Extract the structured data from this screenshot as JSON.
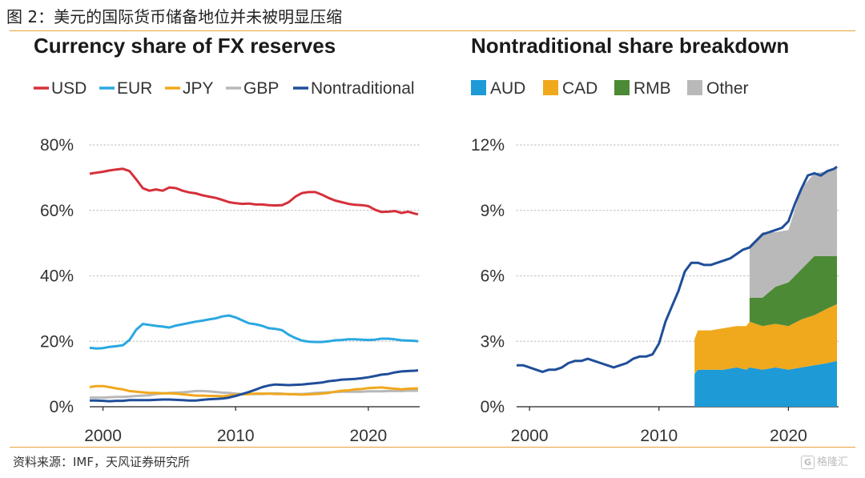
{
  "figure_title": "图 2：美元的国际货币储备地位并未被明显压缩",
  "source": "资料来源：IMF，天风证券研究所",
  "watermark": {
    "icon_text": "G",
    "text": "格隆汇"
  },
  "colors": {
    "USD": "#d6303a",
    "EUR": "#2aa8e0",
    "JPY": "#f0a81c",
    "GBP": "#b8b8b8",
    "Nontraditional": "#1f4e99",
    "AUD": "#1e9ad6",
    "CAD": "#f0a81c",
    "RMB": "#4c8a35",
    "Other": "#b9b9b9",
    "accent_rule": "#e8a23a"
  },
  "chart_data": [
    {
      "type": "line",
      "title": "Currency share of FX reserves",
      "xlabel": "",
      "ylabel": "",
      "xlim": [
        1999,
        2023.75
      ],
      "ylim": [
        0,
        80
      ],
      "yticks": [
        "0%",
        "20%",
        "40%",
        "60%",
        "80%"
      ],
      "xticks": [
        "2000",
        "2010",
        "2020"
      ],
      "grid": true,
      "legend": "top",
      "x": [
        1999,
        1999.5,
        2000,
        2000.5,
        2001,
        2001.5,
        2002,
        2002.5,
        2003,
        2003.5,
        2004,
        2004.5,
        2005,
        2005.5,
        2006,
        2006.5,
        2007,
        2007.5,
        2008,
        2008.5,
        2009,
        2009.5,
        2010,
        2010.5,
        2011,
        2011.5,
        2012,
        2012.5,
        2013,
        2013.5,
        2014,
        2014.5,
        2015,
        2015.5,
        2016,
        2016.5,
        2017,
        2017.5,
        2018,
        2018.5,
        2019,
        2019.5,
        2020,
        2020.5,
        2021,
        2021.5,
        2022,
        2022.5,
        2023,
        2023.5,
        2023.75
      ],
      "series": [
        {
          "name": "USD",
          "values": [
            71.2,
            71.5,
            71.8,
            72.2,
            72.5,
            72.7,
            72.0,
            69.5,
            66.8,
            66.0,
            66.4,
            66.0,
            67.0,
            66.8,
            66.0,
            65.5,
            65.2,
            64.6,
            64.2,
            63.8,
            63.2,
            62.5,
            62.2,
            62.0,
            62.1,
            61.8,
            61.8,
            61.6,
            61.5,
            61.6,
            62.5,
            64.2,
            65.3,
            65.6,
            65.6,
            64.8,
            63.8,
            63.0,
            62.5,
            62.0,
            61.7,
            61.6,
            61.3,
            60.2,
            59.5,
            59.6,
            59.8,
            59.2,
            59.6,
            59.0,
            58.8
          ]
        },
        {
          "name": "EUR",
          "values": [
            18.0,
            17.8,
            17.9,
            18.3,
            18.5,
            18.8,
            20.4,
            23.5,
            25.3,
            25.0,
            24.7,
            24.5,
            24.2,
            24.8,
            25.2,
            25.6,
            26.0,
            26.3,
            26.7,
            27.0,
            27.6,
            27.9,
            27.3,
            26.4,
            25.5,
            25.2,
            24.7,
            24.0,
            23.8,
            23.4,
            22.0,
            21.0,
            20.2,
            19.9,
            19.8,
            19.8,
            20.0,
            20.3,
            20.4,
            20.6,
            20.6,
            20.5,
            20.4,
            20.5,
            20.8,
            20.8,
            20.6,
            20.3,
            20.2,
            20.1,
            20.0
          ]
        },
        {
          "name": "JPY",
          "values": [
            6.0,
            6.3,
            6.3,
            6.0,
            5.6,
            5.3,
            4.8,
            4.6,
            4.4,
            4.2,
            4.2,
            4.1,
            4.1,
            4.0,
            3.8,
            3.6,
            3.4,
            3.4,
            3.3,
            3.3,
            3.2,
            3.4,
            3.7,
            3.8,
            3.9,
            4.0,
            4.0,
            4.0,
            3.9,
            3.9,
            3.9,
            3.8,
            3.7,
            3.8,
            3.9,
            4.0,
            4.2,
            4.6,
            4.9,
            5.0,
            5.3,
            5.4,
            5.7,
            5.8,
            5.9,
            5.7,
            5.5,
            5.3,
            5.5,
            5.6,
            5.6
          ]
        },
        {
          "name": "GBP",
          "values": [
            2.8,
            2.8,
            2.8,
            2.9,
            3.0,
            3.0,
            3.1,
            3.3,
            3.4,
            3.5,
            3.9,
            4.1,
            4.2,
            4.3,
            4.4,
            4.6,
            4.8,
            4.8,
            4.7,
            4.5,
            4.3,
            4.2,
            4.0,
            3.9,
            3.9,
            3.9,
            3.9,
            4.0,
            4.1,
            4.0,
            3.8,
            3.9,
            3.9,
            4.0,
            4.2,
            4.3,
            4.4,
            4.5,
            4.6,
            4.6,
            4.6,
            4.6,
            4.7,
            4.7,
            4.7,
            4.8,
            4.8,
            4.8,
            4.9,
            4.9,
            4.9
          ]
        },
        {
          "name": "Nontraditional",
          "values": [
            1.9,
            1.9,
            1.8,
            1.7,
            1.8,
            1.8,
            2.0,
            2.0,
            2.0,
            2.0,
            2.1,
            2.2,
            2.2,
            2.1,
            2.0,
            1.9,
            1.9,
            2.1,
            2.3,
            2.4,
            2.5,
            2.8,
            3.3,
            3.9,
            4.5,
            5.2,
            6.0,
            6.5,
            6.8,
            6.7,
            6.6,
            6.7,
            6.8,
            7.0,
            7.2,
            7.4,
            7.8,
            8.0,
            8.3,
            8.4,
            8.5,
            8.7,
            9.0,
            9.4,
            9.8,
            10.0,
            10.5,
            10.8,
            10.9,
            11.0,
            11.1
          ]
        }
      ]
    },
    {
      "type": "area",
      "title": "Nontraditional share breakdown",
      "xlabel": "",
      "ylabel": "",
      "xlim": [
        1999,
        2023.75
      ],
      "ylim": [
        0,
        12
      ],
      "yticks": [
        "0%",
        "3%",
        "6%",
        "9%",
        "12%"
      ],
      "xticks": [
        "2000",
        "2010",
        "2020"
      ],
      "grid": true,
      "legend": "top",
      "line_series": {
        "name": "Nontraditional",
        "x": [
          1999,
          1999.5,
          2000,
          2000.5,
          2001,
          2001.5,
          2002,
          2002.5,
          2003,
          2003.5,
          2004,
          2004.5,
          2005,
          2005.5,
          2006,
          2006.5,
          2007,
          2007.5,
          2008,
          2008.5,
          2009,
          2009.5,
          2010,
          2010.5,
          2011,
          2011.5,
          2012,
          2012.5,
          2013,
          2013.5,
          2014,
          2014.5,
          2015,
          2015.5,
          2016,
          2016.5,
          2017,
          2017.5,
          2018,
          2018.5,
          2019,
          2019.5,
          2020,
          2020.5,
          2021,
          2021.5,
          2022,
          2022.5,
          2023,
          2023.5,
          2023.75
        ],
        "values": [
          1.9,
          1.9,
          1.8,
          1.7,
          1.6,
          1.7,
          1.7,
          1.8,
          2.0,
          2.1,
          2.1,
          2.2,
          2.1,
          2.0,
          1.9,
          1.8,
          1.9,
          2.0,
          2.2,
          2.3,
          2.3,
          2.4,
          2.9,
          3.9,
          4.6,
          5.3,
          6.2,
          6.6,
          6.6,
          6.5,
          6.5,
          6.6,
          6.7,
          6.8,
          7.0,
          7.2,
          7.3,
          7.6,
          7.9,
          8.0,
          8.1,
          8.2,
          8.5,
          9.3,
          10.0,
          10.6,
          10.7,
          10.6,
          10.8,
          10.9,
          11.0
        ]
      },
      "stack_x": [
        2012.75,
        2013,
        2014,
        2015,
        2016,
        2016.75,
        2017,
        2018,
        2019,
        2020,
        2021,
        2022,
        2023,
        2023.75
      ],
      "series": [
        {
          "name": "AUD",
          "values": [
            1.5,
            1.7,
            1.7,
            1.7,
            1.8,
            1.7,
            1.8,
            1.7,
            1.8,
            1.7,
            1.8,
            1.9,
            2.0,
            2.1
          ]
        },
        {
          "name": "CAD",
          "values": [
            1.6,
            1.8,
            1.8,
            1.9,
            1.9,
            2.0,
            2.1,
            2.0,
            2.0,
            2.0,
            2.2,
            2.3,
            2.5,
            2.6
          ]
        },
        {
          "name": "RMB",
          "values": [
            0,
            0,
            0,
            0,
            0,
            0,
            1.1,
            1.3,
            1.7,
            2.0,
            2.3,
            2.7,
            2.4,
            2.2
          ]
        },
        {
          "name": "Other",
          "values": [
            0,
            0,
            0,
            0,
            0,
            0,
            2.4,
            3.0,
            2.5,
            2.4,
            3.7,
            3.8,
            3.9,
            4.1
          ]
        }
      ]
    }
  ]
}
